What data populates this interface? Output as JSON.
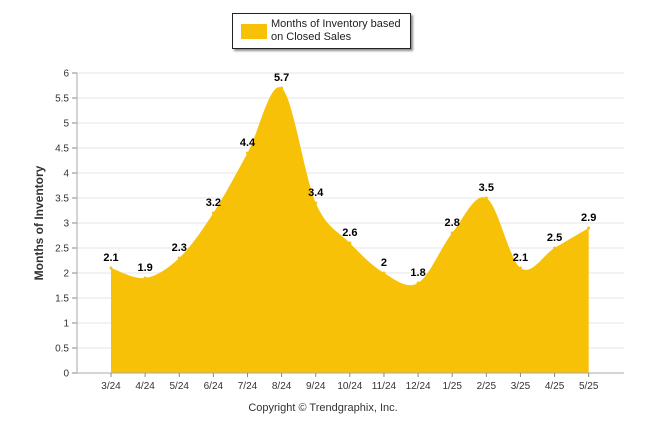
{
  "legend": {
    "label": "Months of Inventory based on Closed Sales",
    "color": "#f7c108"
  },
  "copyright": "Copyright © Trendgraphix, Inc.",
  "chart_data": {
    "type": "area",
    "title": "",
    "xlabel": "",
    "ylabel": "Months of Inventory",
    "ylim": [
      0,
      6
    ],
    "ytick_step": 0.5,
    "grid": true,
    "legend_position": "top-center",
    "color": "#f7c108",
    "categories": [
      "3/24",
      "4/24",
      "5/24",
      "6/24",
      "7/24",
      "8/24",
      "9/24",
      "10/24",
      "11/24",
      "12/24",
      "1/25",
      "2/25",
      "3/25",
      "4/25",
      "5/25"
    ],
    "series": [
      {
        "name": "Months of Inventory based on Closed Sales",
        "values": [
          2.1,
          1.9,
          2.3,
          3.2,
          4.4,
          5.7,
          3.4,
          2.6,
          2,
          1.8,
          2.8,
          3.5,
          2.1,
          2.5,
          2.9
        ]
      }
    ]
  }
}
